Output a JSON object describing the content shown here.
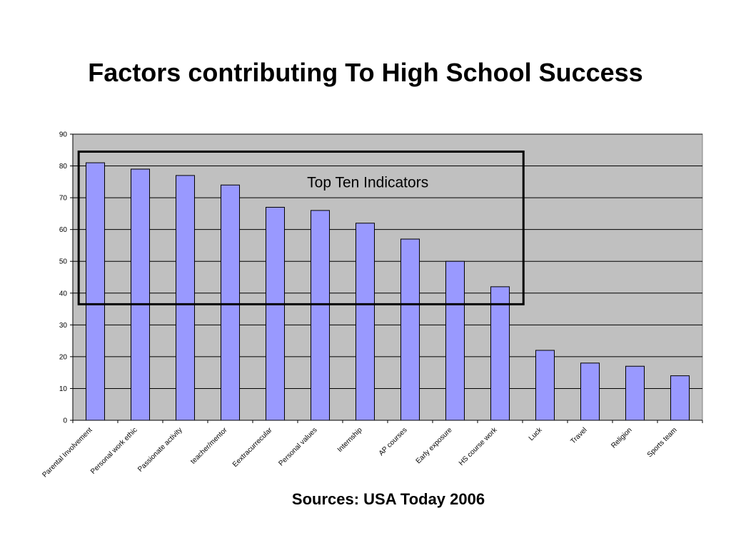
{
  "slide": {
    "title": "Factors contributing To High School Success",
    "source": "Sources: USA Today 2006"
  },
  "chart_data": {
    "type": "bar",
    "categories": [
      "Parental Involvement",
      "Personal work ethic",
      "Passionate activity",
      "teacher/mentor",
      "Eextracurrecular",
      "Personal values",
      "Internship",
      "AP courses",
      "Early exposure",
      "HS course work",
      "Luck",
      "Travel",
      "Religion",
      "Sports team"
    ],
    "values": [
      81,
      79,
      77,
      74,
      67,
      66,
      62,
      57,
      50,
      42,
      22,
      18,
      17,
      14
    ],
    "ylim": [
      0,
      90
    ],
    "yticks": [
      0,
      10,
      20,
      30,
      40,
      50,
      60,
      70,
      80,
      90
    ],
    "grid": true,
    "legend": "none",
    "annotation": {
      "text": "Top Ten Indicators",
      "from_category": 0,
      "to_category": 9,
      "y_range": [
        36.5,
        84.5
      ]
    },
    "colors": {
      "bar_fill": "#9999ff",
      "bar_stroke": "#000000",
      "plot_background": "#c0c0c0",
      "gridline": "#000000"
    }
  }
}
